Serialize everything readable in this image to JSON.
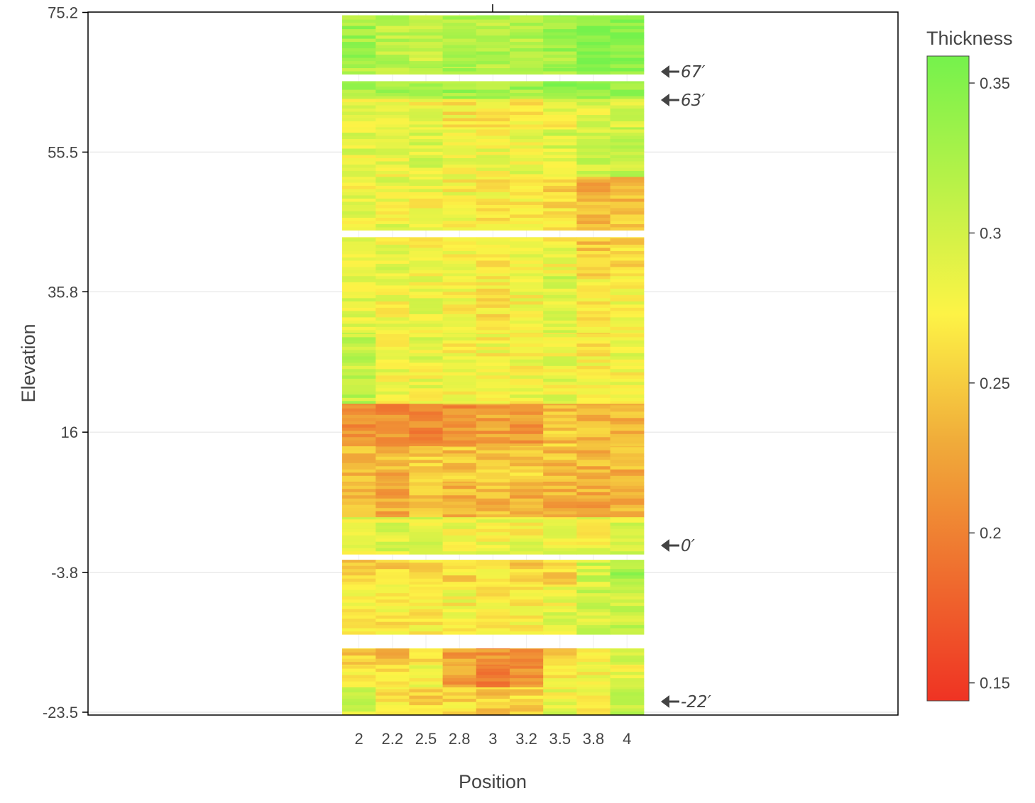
{
  "chart_data": {
    "type": "heatmap",
    "xlabel": "Position",
    "ylabel": "Elevation",
    "x_categories": [
      "2",
      "2.2",
      "2.5",
      "2.8",
      "3",
      "3.2",
      "3.5",
      "3.8",
      "4"
    ],
    "y_ticks": [
      "75.2",
      "55.5",
      "35.8",
      "16",
      "-3.8",
      "-23.5"
    ],
    "ylim": [
      -23.5,
      75.2
    ],
    "colorbar": {
      "title": "Thickness",
      "ticks": [
        "0.35",
        "0.3",
        "0.25",
        "0.2",
        "0.15"
      ],
      "range": [
        0.144,
        0.359
      ],
      "colors": [
        "#ef3323",
        "#ef6f2f",
        "#f0ab3a",
        "#fdf346",
        "#b9f248",
        "#75f24c"
      ]
    },
    "annotations": [
      "67′",
      "63′",
      "0′",
      "-22′"
    ],
    "bands": [
      {
        "from": 67.5,
        "to": 74.8,
        "values": [
          0.33,
          0.315,
          0.31,
          0.325,
          0.32,
          0.32,
          0.33,
          0.345,
          0.345
        ]
      },
      {
        "from": 66.5,
        "to": 67.5,
        "values": [
          0.32,
          0.31,
          0.31,
          0.32,
          0.315,
          0.315,
          0.33,
          0.34,
          0.34
        ]
      },
      {
        "from": 63.0,
        "to": 65.5,
        "values": [
          0.33,
          0.33,
          0.33,
          0.33,
          0.33,
          0.33,
          0.34,
          0.34,
          0.34
        ]
      },
      {
        "from": 59.0,
        "to": 63.0,
        "values": [
          0.285,
          0.275,
          0.28,
          0.27,
          0.27,
          0.27,
          0.28,
          0.29,
          0.3
        ]
      },
      {
        "from": 52.0,
        "to": 59.0,
        "values": [
          0.29,
          0.28,
          0.29,
          0.285,
          0.28,
          0.285,
          0.295,
          0.3,
          0.305
        ]
      },
      {
        "from": 44.5,
        "to": 52.0,
        "values": [
          0.285,
          0.285,
          0.28,
          0.275,
          0.27,
          0.275,
          0.26,
          0.235,
          0.245
        ]
      },
      {
        "from": 38.0,
        "to": 43.5,
        "values": [
          0.29,
          0.285,
          0.28,
          0.28,
          0.275,
          0.28,
          0.28,
          0.245,
          0.255
        ]
      },
      {
        "from": 30.0,
        "to": 38.0,
        "values": [
          0.29,
          0.28,
          0.285,
          0.275,
          0.27,
          0.275,
          0.295,
          0.265,
          0.275
        ]
      },
      {
        "from": 20.0,
        "to": 30.0,
        "values": [
          0.31,
          0.28,
          0.285,
          0.275,
          0.275,
          0.28,
          0.285,
          0.27,
          0.28
        ]
      },
      {
        "from": 14.0,
        "to": 20.0,
        "values": [
          0.215,
          0.21,
          0.21,
          0.215,
          0.22,
          0.22,
          0.245,
          0.235,
          0.24
        ]
      },
      {
        "from": 9.0,
        "to": 14.0,
        "values": [
          0.235,
          0.235,
          0.255,
          0.245,
          0.245,
          0.25,
          0.245,
          0.235,
          0.235
        ]
      },
      {
        "from": 4.0,
        "to": 9.0,
        "values": [
          0.235,
          0.23,
          0.245,
          0.235,
          0.24,
          0.235,
          0.23,
          0.23,
          0.235
        ]
      },
      {
        "from": -1.2,
        "to": 4.0,
        "values": [
          0.285,
          0.29,
          0.29,
          0.28,
          0.28,
          0.28,
          0.285,
          0.28,
          0.29
        ]
      },
      {
        "from": -5.5,
        "to": -2.0,
        "values": [
          0.25,
          0.255,
          0.26,
          0.26,
          0.265,
          0.255,
          0.255,
          0.3,
          0.33
        ]
      },
      {
        "from": -12.5,
        "to": -5.5,
        "values": [
          0.275,
          0.27,
          0.27,
          0.275,
          0.265,
          0.27,
          0.285,
          0.3,
          0.31
        ]
      },
      {
        "from": -16.8,
        "to": -14.5,
        "values": [
          0.25,
          0.245,
          0.255,
          0.225,
          0.215,
          0.21,
          0.25,
          0.27,
          0.29
        ]
      },
      {
        "from": -20.0,
        "to": -16.8,
        "values": [
          0.26,
          0.265,
          0.28,
          0.225,
          0.205,
          0.215,
          0.27,
          0.275,
          0.285
        ]
      },
      {
        "from": -23.8,
        "to": -20.0,
        "values": [
          0.3,
          0.27,
          0.255,
          0.26,
          0.25,
          0.255,
          0.285,
          0.28,
          0.31
        ]
      }
    ]
  }
}
